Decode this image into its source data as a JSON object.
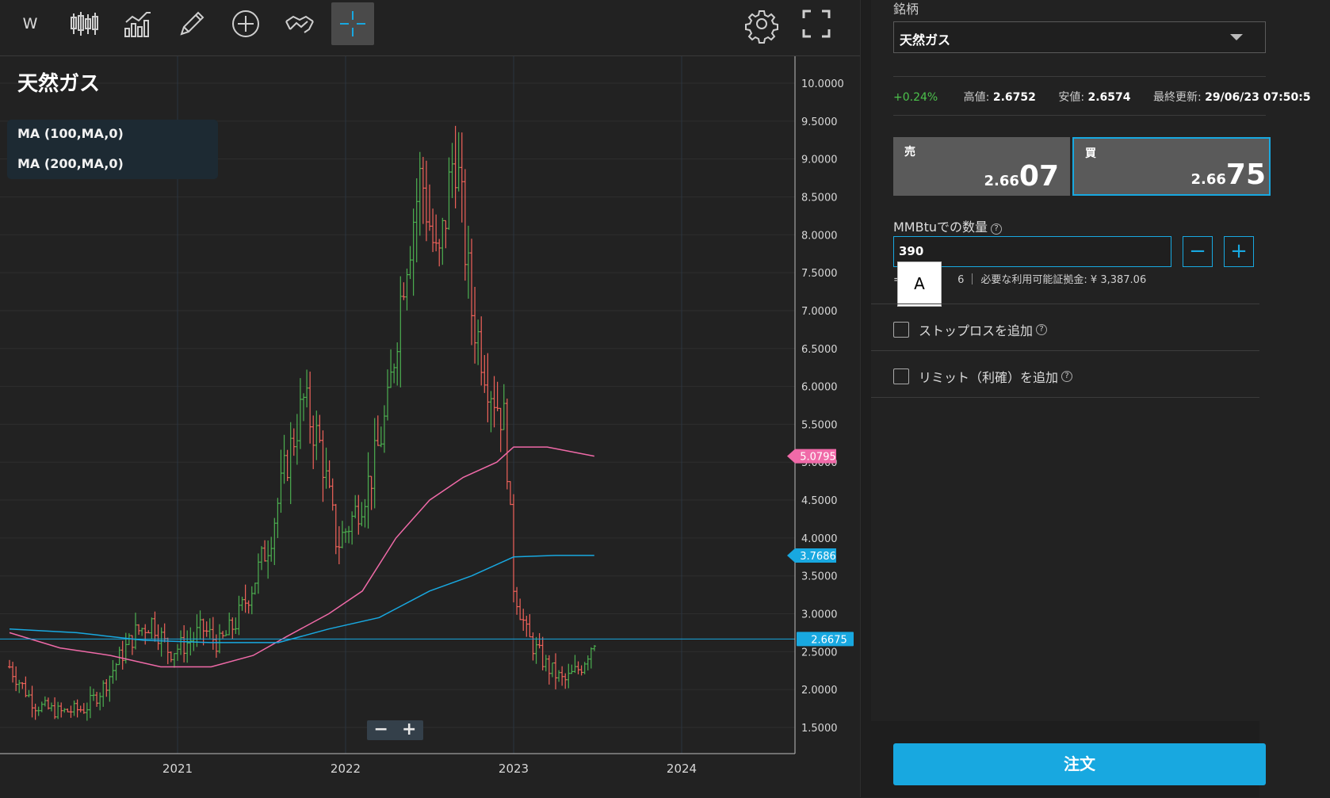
{
  "toolbar": {
    "interval_label": "W",
    "tools": [
      "candlestick-icon",
      "bar-chart-icon",
      "pencil-icon",
      "plus-circle-icon",
      "handshake-icon",
      "crosshair-icon"
    ],
    "right_tools": [
      "gear-icon",
      "fullscreen-icon"
    ]
  },
  "chart": {
    "title": "天然ガス",
    "ma_legend": [
      "MA (100,MA,0)",
      "MA (200,MA,0)"
    ],
    "zoom_minus": "−",
    "zoom_plus": "+",
    "colors": {
      "up": "#4caf50",
      "down": "#f0625a",
      "ma100": "#f06aa8",
      "ma200": "#18a8e0",
      "current": "#18a8e0"
    }
  },
  "chart_data": {
    "type": "candlestick",
    "title": "天然ガス",
    "interval": "W",
    "y_ticks": [
      "10.0000",
      "9.5000",
      "9.0000",
      "8.5000",
      "8.0000",
      "7.5000",
      "7.0000",
      "6.5000",
      "6.0000",
      "5.5000",
      "5.0000",
      "4.5000",
      "4.0000",
      "3.5000",
      "3.0000",
      "2.5000",
      "2.0000",
      "1.5000"
    ],
    "x_ticks": [
      "2021",
      "2022",
      "2023",
      "2024"
    ],
    "ylim": [
      1.2,
      10.2
    ],
    "price_labels": {
      "ma100": "5.0795",
      "ma200": "3.7686",
      "current": "2.6675"
    },
    "legend": [
      "MA (100,MA,0)",
      "MA (200,MA,0)"
    ],
    "close_path": [
      [
        2020.0,
        2.3
      ],
      [
        2020.15,
        1.8
      ],
      [
        2020.3,
        1.7
      ],
      [
        2020.45,
        1.75
      ],
      [
        2020.55,
        2.0
      ],
      [
        2020.65,
        2.4
      ],
      [
        2020.75,
        2.75
      ],
      [
        2020.85,
        2.9
      ],
      [
        2020.95,
        2.5
      ],
      [
        2021.05,
        2.6
      ],
      [
        2021.15,
        2.8
      ],
      [
        2021.25,
        2.6
      ],
      [
        2021.35,
        2.9
      ],
      [
        2021.45,
        3.4
      ],
      [
        2021.55,
        4.0
      ],
      [
        2021.65,
        5.0
      ],
      [
        2021.75,
        5.8
      ],
      [
        2021.85,
        5.2
      ],
      [
        2021.95,
        3.9
      ],
      [
        2022.05,
        4.3
      ],
      [
        2022.15,
        4.8
      ],
      [
        2022.25,
        5.7
      ],
      [
        2022.35,
        7.6
      ],
      [
        2022.45,
        8.8
      ],
      [
        2022.55,
        7.5
      ],
      [
        2022.65,
        9.2
      ],
      [
        2022.75,
        7.0
      ],
      [
        2022.85,
        6.1
      ],
      [
        2022.95,
        5.5
      ],
      [
        2023.0,
        3.4
      ],
      [
        2023.08,
        2.7
      ],
      [
        2023.2,
        2.3
      ],
      [
        2023.3,
        2.1
      ],
      [
        2023.4,
        2.3
      ],
      [
        2023.48,
        2.67
      ]
    ],
    "ma100_path": [
      [
        2020.0,
        2.75
      ],
      [
        2020.3,
        2.55
      ],
      [
        2020.6,
        2.45
      ],
      [
        2020.9,
        2.3
      ],
      [
        2021.2,
        2.3
      ],
      [
        2021.45,
        2.45
      ],
      [
        2021.65,
        2.7
      ],
      [
        2021.9,
        3.0
      ],
      [
        2022.1,
        3.3
      ],
      [
        2022.3,
        4.0
      ],
      [
        2022.5,
        4.5
      ],
      [
        2022.7,
        4.8
      ],
      [
        2022.9,
        5.0
      ],
      [
        2023.0,
        5.2
      ],
      [
        2023.2,
        5.2
      ],
      [
        2023.48,
        5.08
      ]
    ],
    "ma200_path": [
      [
        2020.0,
        2.8
      ],
      [
        2020.4,
        2.75
      ],
      [
        2020.8,
        2.65
      ],
      [
        2021.2,
        2.62
      ],
      [
        2021.6,
        2.62
      ],
      [
        2021.9,
        2.8
      ],
      [
        2022.2,
        2.95
      ],
      [
        2022.5,
        3.3
      ],
      [
        2022.75,
        3.5
      ],
      [
        2023.0,
        3.75
      ],
      [
        2023.25,
        3.77
      ],
      [
        2023.48,
        3.77
      ]
    ],
    "grid": true
  },
  "panel": {
    "symbol_label": "銘柄",
    "symbol_value": "天然ガス",
    "change": "+0.24%",
    "high_label": "高値:",
    "high_value": "2.6752",
    "low_label": "安値:",
    "low_value": "2.6574",
    "updated_label": "最終更新:",
    "updated_value": "29/06/23 07:50:5",
    "sell": {
      "label": "売",
      "price_small": "2.66",
      "price_big": "07"
    },
    "buy": {
      "label": "買",
      "price_small": "2.66",
      "price_big": "75"
    },
    "qty_label": "MMBtuでの数量",
    "qty_value": "390",
    "qty_info_left": "=                 6",
    "qty_info_right": "必要な利用可能証拠金: ¥ 3,387.06",
    "ime_candidate": "A",
    "stoploss_label": "ストップロスを追加",
    "limit_label": "リミット（利確）を追加",
    "order_button": "注文",
    "minus": "−",
    "plus": "+"
  }
}
